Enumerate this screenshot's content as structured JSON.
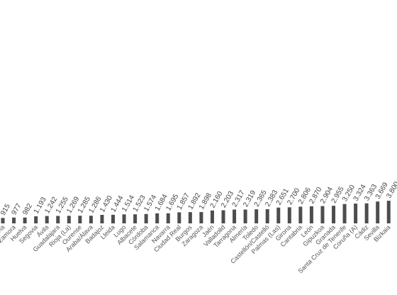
{
  "chart_data": {
    "type": "bar",
    "categories": [
      "ona",
      "Zamora",
      "Huelva",
      "Segovia",
      "Ávila",
      "Guadalajara",
      "Rioja (La)",
      "Ourense",
      "Araba/Álava",
      "Badajoz",
      "Lleida",
      "Lugo",
      "Albacete",
      "Córdoba",
      "Salamanca",
      "Navarra",
      "Ciudad Real",
      "Burgos",
      "Zaragoza",
      "Jaén",
      "Valladolid",
      "Tarragona",
      "Almería",
      "Toledo",
      "Castellón/Castelló",
      "Palmas (Las)",
      "Girona",
      "Cantabria",
      "León",
      "Gipuzkoa",
      "Granada",
      "Santa Cruz de Tenerife",
      "Coruña (A)",
      "Cádiz",
      "Sevilla",
      "Bizkaia"
    ],
    "values": [
      915,
      977,
      982,
      1193,
      1242,
      1255,
      1269,
      1285,
      1286,
      1430,
      1444,
      1514,
      1523,
      1574,
      1684,
      1695,
      1857,
      1892,
      1898,
      2160,
      2203,
      2317,
      2319,
      2365,
      2383,
      2651,
      2700,
      2806,
      2870,
      2904,
      2955,
      3250,
      3324,
      3363,
      3669,
      3800
    ],
    "value_labels": [
      "915",
      "977",
      "982",
      "1.193",
      "1.242",
      "1.255",
      "1.269",
      "1.285",
      "1.286",
      "1.430",
      "1.444",
      "1.514",
      "1.523",
      "1.574",
      "1.684",
      "1.695",
      "1.857",
      "1.892",
      "1.898",
      "2.160",
      "2.203",
      "2.317",
      "2.319",
      "2.365",
      "2.383",
      "2.651",
      "2.700",
      "2.806",
      "2.870",
      "2.904",
      "2.955",
      "3.250",
      "3.324",
      "3.363",
      "3.669",
      "3.800"
    ],
    "color": "#4d4d4d"
  }
}
